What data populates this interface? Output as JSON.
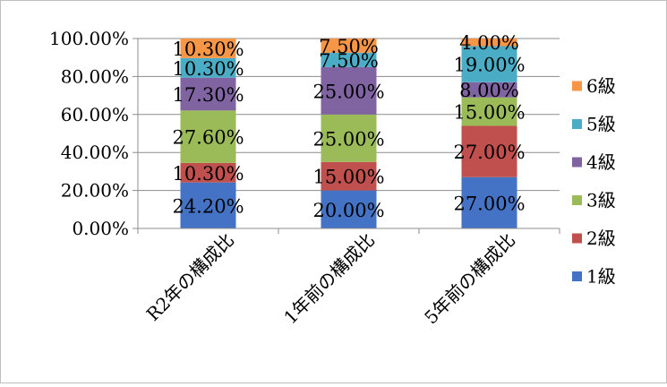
{
  "chart_data": {
    "type": "bar",
    "stacked": true,
    "value_unit": "percent",
    "categories": [
      "R2年の構成比",
      "1年前の構成比",
      "5年前の構成比"
    ],
    "series": [
      {
        "name": "1級",
        "color": "#4472c4",
        "values": [
          24.2,
          20.0,
          27.0
        ],
        "labels": [
          "24.20%",
          "20.00%",
          "27.00%"
        ]
      },
      {
        "name": "2級",
        "color": "#c0504d",
        "values": [
          10.3,
          15.0,
          27.0
        ],
        "labels": [
          "10.30%",
          "15.00%",
          "27.00%"
        ]
      },
      {
        "name": "3級",
        "color": "#9bbb59",
        "values": [
          27.6,
          25.0,
          15.0
        ],
        "labels": [
          "27.60%",
          "25.00%",
          "15.00%"
        ]
      },
      {
        "name": "4級",
        "color": "#8064a2",
        "values": [
          17.3,
          25.0,
          8.0
        ],
        "labels": [
          "17.30%",
          "25.00%",
          "8.00%"
        ]
      },
      {
        "name": "5級",
        "color": "#4bacc6",
        "values": [
          10.3,
          7.5,
          19.0
        ],
        "labels": [
          "10.30%",
          "7.50%",
          "19.00%"
        ]
      },
      {
        "name": "6級",
        "color": "#f79646",
        "values": [
          10.3,
          7.5,
          4.0
        ],
        "labels": [
          "10.30%",
          "7.50%",
          "4.00%"
        ]
      }
    ],
    "y_ticks": [
      "0.00%",
      "20.00%",
      "40.00%",
      "60.00%",
      "80.00%",
      "100.00%"
    ],
    "ylim": [
      0,
      100
    ],
    "grid": true,
    "legend_position": "right",
    "legend_order": [
      "6級",
      "5級",
      "4級",
      "3級",
      "2級",
      "1級"
    ]
  }
}
